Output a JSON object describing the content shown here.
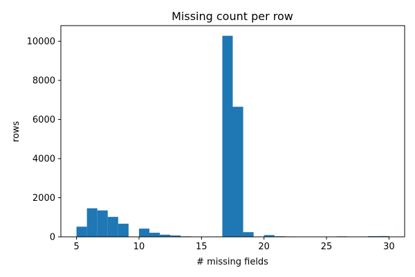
{
  "chart_data": {
    "type": "bar",
    "title": "Missing count per row",
    "xlabel": "# missing fields",
    "ylabel": "rows",
    "xlim": [
      3.75,
      31.25
    ],
    "ylim": [
      0,
      10800
    ],
    "xticks": [
      5,
      10,
      15,
      20,
      25,
      30
    ],
    "yticks": [
      0,
      2000,
      4000,
      6000,
      8000,
      10000
    ],
    "bar_color": "#1f77b4",
    "bin_width": 0.8333,
    "bins": [
      {
        "x0": 5.0,
        "count": 520
      },
      {
        "x0": 5.8333,
        "count": 1460
      },
      {
        "x0": 6.6667,
        "count": 1350
      },
      {
        "x0": 7.5,
        "count": 1020
      },
      {
        "x0": 8.3333,
        "count": 670
      },
      {
        "x0": 9.1667,
        "count": 0
      },
      {
        "x0": 10.0,
        "count": 420
      },
      {
        "x0": 10.8333,
        "count": 210
      },
      {
        "x0": 11.6667,
        "count": 110
      },
      {
        "x0": 12.5,
        "count": 70
      },
      {
        "x0": 13.3333,
        "count": 25
      },
      {
        "x0": 14.1667,
        "count": 0
      },
      {
        "x0": 15.0,
        "count": 0
      },
      {
        "x0": 15.8333,
        "count": 0
      },
      {
        "x0": 16.6667,
        "count": 10280
      },
      {
        "x0": 17.5,
        "count": 6650
      },
      {
        "x0": 18.3333,
        "count": 240
      },
      {
        "x0": 19.1667,
        "count": 0
      },
      {
        "x0": 20.0,
        "count": 90
      },
      {
        "x0": 20.8333,
        "count": 30
      },
      {
        "x0": 21.6667,
        "count": 20
      },
      {
        "x0": 22.5,
        "count": 15
      },
      {
        "x0": 23.3333,
        "count": 0
      },
      {
        "x0": 24.1667,
        "count": 0
      },
      {
        "x0": 25.0,
        "count": 0
      },
      {
        "x0": 25.8333,
        "count": 25
      },
      {
        "x0": 26.6667,
        "count": 15
      },
      {
        "x0": 27.5,
        "count": 0
      },
      {
        "x0": 28.3333,
        "count": 35
      },
      {
        "x0": 29.1667,
        "count": 40
      }
    ]
  }
}
